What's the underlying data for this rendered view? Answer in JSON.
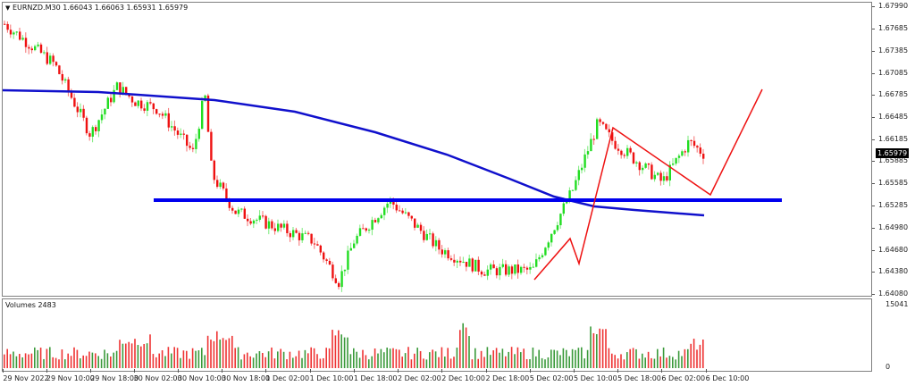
{
  "header": {
    "symbol": "EURNZD.M30",
    "open": "1.66043",
    "high": "1.66063",
    "low": "1.65931",
    "close": "1.65979",
    "dropdown_icon": "triangle-down-icon"
  },
  "price_axis": {
    "labels": [
      "1.67990",
      "1.67685",
      "1.67385",
      "1.67085",
      "1.66785",
      "1.66485",
      "1.66185",
      "1.65885",
      "1.65585",
      "1.65285",
      "1.64980",
      "1.64680",
      "1.64380",
      "1.64080"
    ],
    "current_price": "1.65979"
  },
  "volume_pane": {
    "title": "Volumes 2483",
    "axis_max": "15041",
    "axis_min": "0"
  },
  "time_axis": {
    "labels": [
      "29 Nov 2022",
      "29 Nov 10:00",
      "29 Nov 18:00",
      "30 Nov 02:00",
      "30 Nov 10:00",
      "30 Nov 18:00",
      "1 Dec 02:00",
      "1 Dec 10:00",
      "1 Dec 18:00",
      "2 Dec 02:00",
      "2 Dec 10:00",
      "2 Dec 18:00",
      "5 Dec 02:00",
      "5 Dec 10:00",
      "5 Dec 18:00",
      "6 Dec 02:00",
      "6 Dec 10:00"
    ]
  },
  "colors": {
    "bull": "#22dd22",
    "bear": "#ee1111",
    "ma": "#1010cc",
    "support": "#0000ee",
    "drawing": "#ee1111",
    "vol_bull": "#3a9a3a",
    "vol_bear": "#ee3333"
  },
  "chart_data": {
    "type": "candlestick",
    "title": "EURNZD.M30",
    "ohlc_last": {
      "open": 1.66043,
      "high": 1.66063,
      "low": 1.65931,
      "close": 1.65979
    },
    "ylim": [
      1.6395,
      1.6805
    ],
    "yticks": [
      1.6799,
      1.67685,
      1.67385,
      1.67085,
      1.66785,
      1.66485,
      1.66185,
      1.65885,
      1.65585,
      1.65285,
      1.6498,
      1.6468,
      1.6438,
      1.6408
    ],
    "xticks": [
      "29 Nov 2022",
      "29 Nov 10:00",
      "29 Nov 18:00",
      "30 Nov 02:00",
      "30 Nov 10:00",
      "30 Nov 18:00",
      "1 Dec 02:00",
      "1 Dec 10:00",
      "1 Dec 18:00",
      "2 Dec 02:00",
      "2 Dec 10:00",
      "2 Dec 18:00",
      "5 Dec 02:00",
      "5 Dec 10:00",
      "5 Dec 18:00",
      "6 Dec 02:00",
      "6 Dec 10:00"
    ],
    "approx_close_path": [
      {
        "t": "29 Nov 2022",
        "price": 1.6775
      },
      {
        "t": "29 Nov 06:00",
        "price": 1.672
      },
      {
        "t": "29 Nov 10:00",
        "price": 1.6625
      },
      {
        "t": "29 Nov 14:00",
        "price": 1.669
      },
      {
        "t": "29 Nov 18:00",
        "price": 1.667
      },
      {
        "t": "30 Nov 02:00",
        "price": 1.666
      },
      {
        "t": "30 Nov 10:00",
        "price": 1.66
      },
      {
        "t": "30 Nov 16:00",
        "price": 1.668
      },
      {
        "t": "30 Nov 18:00",
        "price": 1.657
      },
      {
        "t": "1 Dec 02:00",
        "price": 1.652
      },
      {
        "t": "1 Dec 10:00",
        "price": 1.648
      },
      {
        "t": "1 Dec 14:00",
        "price": 1.6425
      },
      {
        "t": "1 Dec 18:00",
        "price": 1.648
      },
      {
        "t": "2 Dec 02:00",
        "price": 1.6535
      },
      {
        "t": "2 Dec 10:00",
        "price": 1.647
      },
      {
        "t": "2 Dec 18:00",
        "price": 1.644
      },
      {
        "t": "5 Dec 02:00",
        "price": 1.644
      },
      {
        "t": "5 Dec 06:00",
        "price": 1.649
      },
      {
        "t": "5 Dec 10:00",
        "price": 1.655
      },
      {
        "t": "5 Dec 14:00",
        "price": 1.664
      },
      {
        "t": "5 Dec 18:00",
        "price": 1.6615
      },
      {
        "t": "6 Dec 02:00",
        "price": 1.656
      },
      {
        "t": "6 Dec 06:00",
        "price": 1.6615
      },
      {
        "t": "6 Dec 10:00",
        "price": 1.6598
      }
    ],
    "overlays": [
      {
        "name": "moving_average",
        "color": "#1010cc",
        "approx": [
          {
            "t": "29 Nov 2022",
            "price": 1.669
          },
          {
            "t": "30 Nov 18:00",
            "price": 1.668
          },
          {
            "t": "2 Dec 10:00",
            "price": 1.66
          },
          {
            "t": "5 Dec 10:00",
            "price": 1.6527
          },
          {
            "t": "6 Dec 10:00",
            "price": 1.6516
          }
        ]
      },
      {
        "name": "support_line",
        "color": "#0000ee",
        "price": 1.6539,
        "from": "30 Nov 18:00",
        "to": "chart end"
      },
      {
        "name": "drawn_trend_lines",
        "color": "#ee1111",
        "description": "zigzag up from 5 Dec lows to 5 Dec 18:00 peak, downtrend line to projected retest of support, then projected upward arrow to ~1.6690"
      }
    ],
    "volume": {
      "title": "Volumes 2483",
      "ylim": [
        0,
        15041
      ],
      "last": 2483
    }
  }
}
